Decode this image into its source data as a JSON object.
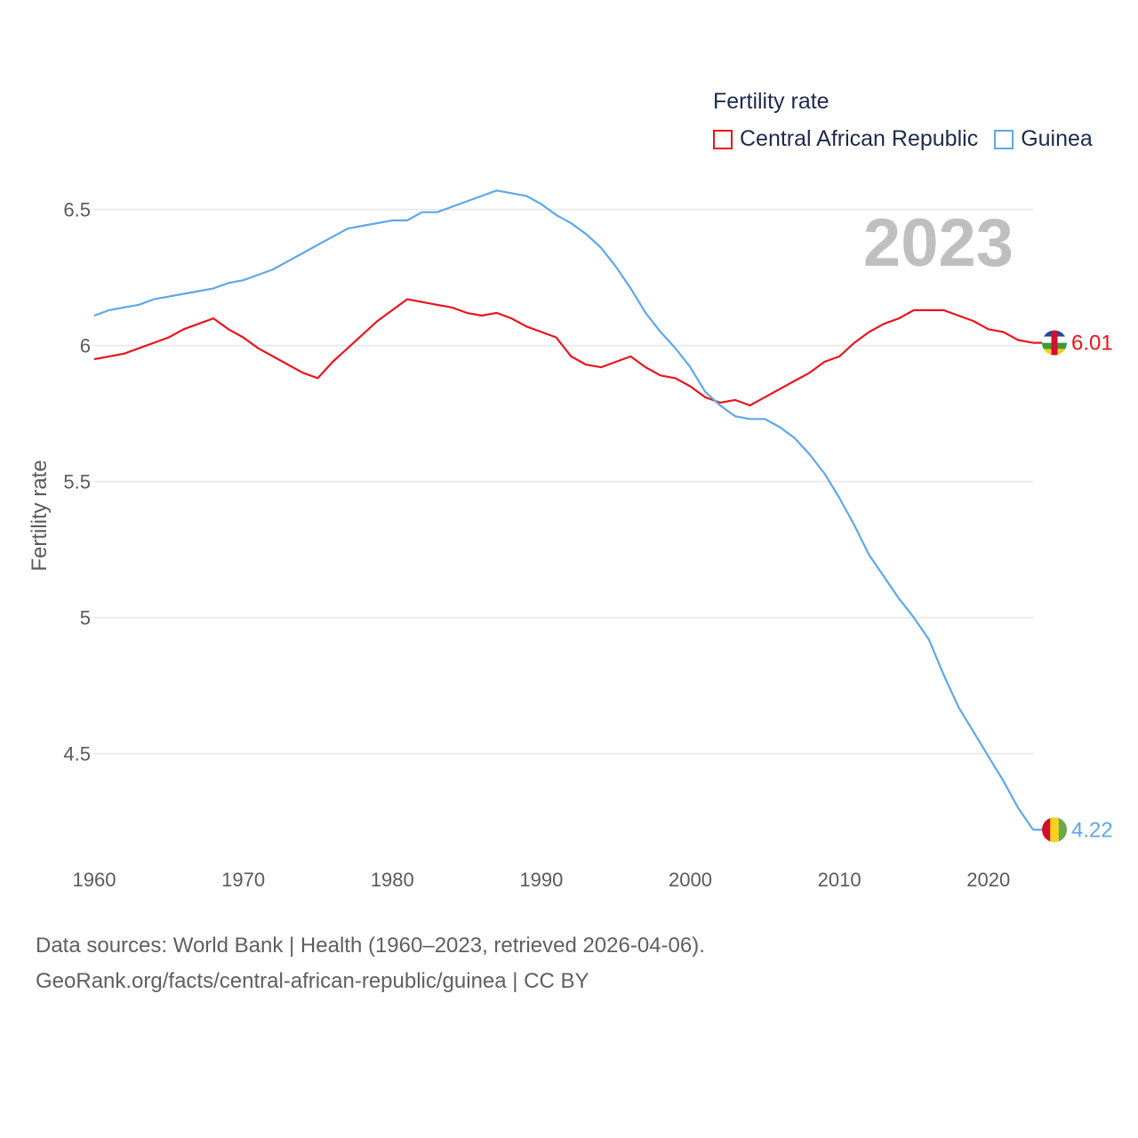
{
  "chart_data": {
    "type": "line",
    "legend_title": "Fertility rate",
    "ylabel": "Fertility rate",
    "xlabel": "",
    "year_overlay": "2023",
    "xlim": [
      1960,
      2023
    ],
    "ylim": [
      4.1,
      6.78
    ],
    "yticks": [
      4.5,
      5,
      5.5,
      6,
      6.5
    ],
    "ytick_labels": [
      "4.5",
      "5",
      "5.5",
      "6",
      "6.5"
    ],
    "xticks": [
      1960,
      1970,
      1980,
      1990,
      2000,
      2010,
      2020
    ],
    "xtick_labels": [
      "1960",
      "1970",
      "1980",
      "1990",
      "2000",
      "2010",
      "2020"
    ],
    "legend_position": "top-right",
    "x": [
      1960,
      1961,
      1962,
      1963,
      1964,
      1965,
      1966,
      1967,
      1968,
      1969,
      1970,
      1971,
      1972,
      1973,
      1974,
      1975,
      1976,
      1977,
      1978,
      1979,
      1980,
      1981,
      1982,
      1983,
      1984,
      1985,
      1986,
      1987,
      1988,
      1989,
      1990,
      1991,
      1992,
      1993,
      1994,
      1995,
      1996,
      1997,
      1998,
      1999,
      2000,
      2001,
      2002,
      2003,
      2004,
      2005,
      2006,
      2007,
      2008,
      2009,
      2010,
      2011,
      2012,
      2013,
      2014,
      2015,
      2016,
      2017,
      2018,
      2019,
      2020,
      2021,
      2022,
      2023
    ],
    "series": [
      {
        "name": "Central African Republic",
        "color": "#e8141c",
        "end_label": "6.01",
        "flag": "central-african-republic",
        "values": [
          5.95,
          5.96,
          5.97,
          5.99,
          6.01,
          6.03,
          6.06,
          6.08,
          6.1,
          6.06,
          6.03,
          5.99,
          5.96,
          5.93,
          5.9,
          5.88,
          5.94,
          5.99,
          6.04,
          6.09,
          6.13,
          6.17,
          6.16,
          6.15,
          6.14,
          6.12,
          6.11,
          6.12,
          6.1,
          6.07,
          6.05,
          6.03,
          5.96,
          5.93,
          5.92,
          5.94,
          5.96,
          5.92,
          5.89,
          5.88,
          5.85,
          5.81,
          5.79,
          5.8,
          5.78,
          5.81,
          5.84,
          5.87,
          5.9,
          5.94,
          5.96,
          6.01,
          6.05,
          6.08,
          6.1,
          6.13,
          6.13,
          6.13,
          6.11,
          6.09,
          6.06,
          6.05,
          6.02,
          6.01
        ]
      },
      {
        "name": "Guinea",
        "color": "#5ea8e8",
        "end_label": "4.22",
        "flag": "guinea",
        "values": [
          6.11,
          6.13,
          6.14,
          6.15,
          6.17,
          6.18,
          6.19,
          6.2,
          6.21,
          6.23,
          6.24,
          6.26,
          6.28,
          6.31,
          6.34,
          6.37,
          6.4,
          6.43,
          6.44,
          6.45,
          6.46,
          6.46,
          6.49,
          6.49,
          6.51,
          6.53,
          6.55,
          6.57,
          6.56,
          6.55,
          6.52,
          6.48,
          6.45,
          6.41,
          6.36,
          6.29,
          6.21,
          6.12,
          6.05,
          5.99,
          5.92,
          5.83,
          5.78,
          5.74,
          5.73,
          5.73,
          5.7,
          5.66,
          5.6,
          5.53,
          5.44,
          5.34,
          5.23,
          5.15,
          5.07,
          5.0,
          4.92,
          4.79,
          4.67,
          4.58,
          4.49,
          4.4,
          4.3,
          4.22
        ]
      }
    ]
  },
  "source": {
    "line1": "Data sources: World Bank | Health (1960–2023, retrieved 2026-04-06).",
    "line2": "GeoRank.org/facts/central-african-republic/guinea | CC BY"
  }
}
